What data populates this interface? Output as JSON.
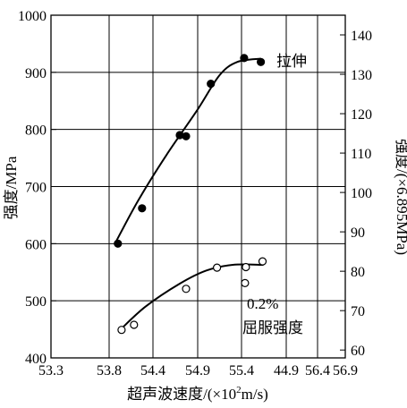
{
  "chart_data": {
    "type": "scatter",
    "xlabel": "超声波速度/(×10²m/s)",
    "xlabel_main": "超声波速度/(×10",
    "xlabel_sup": "2",
    "xlabel_tail": "m/s)",
    "ylabel": "强度/MPa",
    "y2label": "强度/(×6.895MPa)",
    "x_tick_labels": [
      "53.3",
      "53.8",
      "54.4",
      "54.9",
      "55.4",
      "44.9",
      "56.4",
      "56.9"
    ],
    "y_ticks": [
      400,
      500,
      600,
      700,
      800,
      900,
      1000
    ],
    "y2_ticks": [
      60,
      70,
      80,
      90,
      100,
      110,
      120,
      130,
      140
    ],
    "ylim": [
      400,
      1000
    ],
    "y2lim": [
      58.0,
      145.0
    ],
    "grid": true,
    "series": [
      {
        "name": "拉伸",
        "marker": "filled-circle",
        "points": [
          {
            "x": 53.92,
            "y": 600
          },
          {
            "x": 54.25,
            "y": 662
          },
          {
            "x": 54.7,
            "y": 790
          },
          {
            "x": 54.77,
            "y": 788
          },
          {
            "x": 55.05,
            "y": 880
          },
          {
            "x": 55.43,
            "y": 925
          },
          {
            "x": 55.62,
            "y": 918
          }
        ],
        "fit": [
          {
            "x": 53.88,
            "y": 600
          },
          {
            "x": 54.2,
            "y": 676
          },
          {
            "x": 54.55,
            "y": 755
          },
          {
            "x": 54.9,
            "y": 835
          },
          {
            "x": 55.15,
            "y": 895
          },
          {
            "x": 55.35,
            "y": 918
          },
          {
            "x": 55.62,
            "y": 924
          }
        ]
      },
      {
        "name": "0.2% 屈服强度",
        "label_line1": "0.2%",
        "label_line2": "屈服强度",
        "marker": "open-circle",
        "points": [
          {
            "x": 53.97,
            "y": 449
          },
          {
            "x": 54.14,
            "y": 458
          },
          {
            "x": 54.77,
            "y": 521
          },
          {
            "x": 55.12,
            "y": 558
          },
          {
            "x": 55.45,
            "y": 559
          },
          {
            "x": 55.44,
            "y": 531
          },
          {
            "x": 55.64,
            "y": 569
          }
        ],
        "fit": [
          {
            "x": 53.95,
            "y": 449
          },
          {
            "x": 54.3,
            "y": 490
          },
          {
            "x": 54.7,
            "y": 530
          },
          {
            "x": 55.0,
            "y": 553
          },
          {
            "x": 55.3,
            "y": 563
          },
          {
            "x": 55.65,
            "y": 563
          }
        ]
      }
    ]
  }
}
